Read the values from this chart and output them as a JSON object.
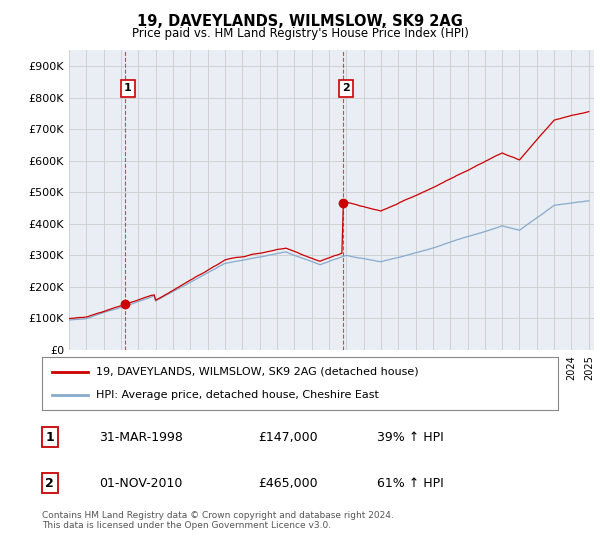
{
  "title": "19, DAVEYLANDS, WILMSLOW, SK9 2AG",
  "subtitle": "Price paid vs. HM Land Registry's House Price Index (HPI)",
  "legend_line1": "19, DAVEYLANDS, WILMSLOW, SK9 2AG (detached house)",
  "legend_line2": "HPI: Average price, detached house, Cheshire East",
  "annotation1_label": "1",
  "annotation1_date": "31-MAR-1998",
  "annotation1_price": "£147,000",
  "annotation1_hpi": "39% ↑ HPI",
  "annotation2_label": "2",
  "annotation2_date": "01-NOV-2010",
  "annotation2_price": "£465,000",
  "annotation2_hpi": "61% ↑ HPI",
  "footer": "Contains HM Land Registry data © Crown copyright and database right 2024.\nThis data is licensed under the Open Government Licence v3.0.",
  "red_color": "#cc0000",
  "blue_color": "#88aacc",
  "background_color": "#ffffff",
  "grid_color": "#cccccc",
  "chart_bg": "#e8eef4",
  "ylim": [
    0,
    950000
  ],
  "yticks": [
    0,
    100000,
    200000,
    300000,
    400000,
    500000,
    600000,
    700000,
    800000,
    900000
  ],
  "sale1_year": 1998.25,
  "sale1_price": 147000,
  "sale2_year": 2010.83,
  "sale2_price": 465000
}
